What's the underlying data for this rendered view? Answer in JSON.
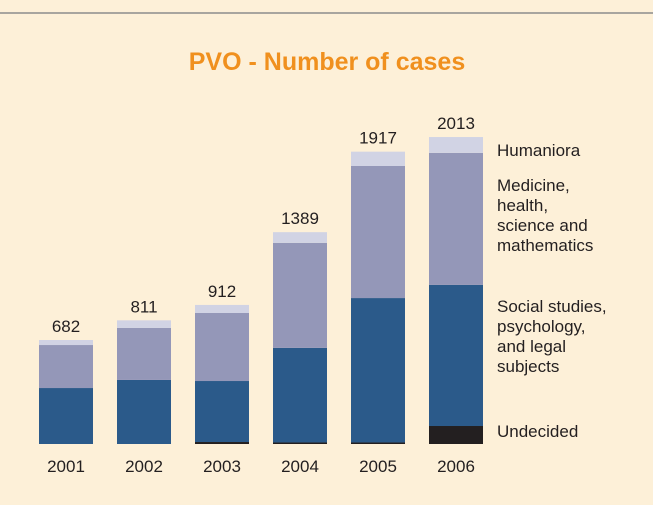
{
  "chart_data": {
    "type": "stacked_bar",
    "title": "PVO - Number of cases",
    "categories": [
      "2001",
      "2002",
      "2003",
      "2004",
      "2005",
      "2006"
    ],
    "totals": [
      682,
      811,
      912,
      1389,
      1917,
      2013
    ],
    "series": [
      {
        "name": "Undecided",
        "color": "#231f20",
        "values": [
          0,
          0,
          13,
          10,
          10,
          118
        ]
      },
      {
        "name": "Social studies,\npsychology,\nand legal\nsubjects",
        "color": "#2b5a8a",
        "values": [
          367,
          420,
          400,
          620,
          947,
          925
        ]
      },
      {
        "name": "Medicine,\nhealth,\nscience and\nmathematics",
        "color": "#9497b8",
        "values": [
          282,
          341,
          446,
          689,
          866,
          866
        ]
      },
      {
        "name": "Humaniora",
        "color": "#d1d3e4",
        "values": [
          33,
          50,
          53,
          70,
          94,
          104
        ]
      }
    ]
  }
}
